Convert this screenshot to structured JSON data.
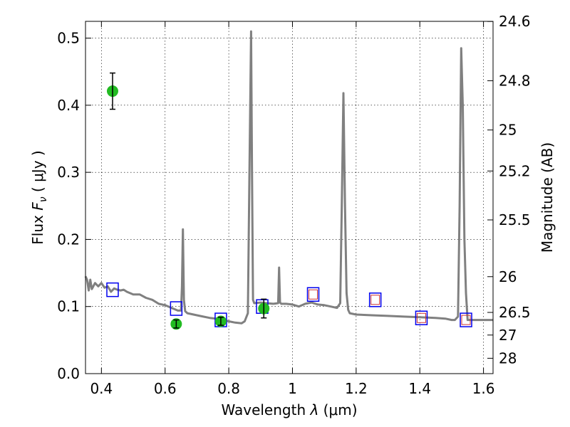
{
  "chart_data": {
    "type": "scatter",
    "title": "",
    "xlabel": "Wavelength  λ (μm)",
    "ylabel": "Flux  F_ν  ( μJy )",
    "ylabel_right": "Magnitude (AB)",
    "xlim": [
      0.35,
      1.63
    ],
    "ylim": [
      0.0,
      0.525
    ],
    "grid": true,
    "x_ticks": [
      0.4,
      0.6,
      0.8,
      1.0,
      1.2,
      1.4,
      1.6
    ],
    "x_tick_labels": [
      "0.4",
      "0.6",
      "0.8",
      "1",
      "1.2",
      "1.4",
      "1.6"
    ],
    "y_ticks": [
      0.0,
      0.1,
      0.2,
      0.3,
      0.4,
      0.5
    ],
    "y_tick_labels": [
      "0.0",
      "0.1",
      "0.2",
      "0.3",
      "0.4",
      "0.5"
    ],
    "right_ticks": [
      {
        "label": "24.6",
        "flux": 0.5248
      },
      {
        "label": "24.8",
        "flux": 0.4365
      },
      {
        "label": "25",
        "flux": 0.3631
      },
      {
        "label": "25.2",
        "flux": 0.302
      },
      {
        "label": "25.5",
        "flux": 0.2291
      },
      {
        "label": "26",
        "flux": 0.1445
      },
      {
        "label": "26.5",
        "flux": 0.0912
      },
      {
        "label": "27",
        "flux": 0.0575
      },
      {
        "label": "28",
        "flux": 0.0229
      }
    ],
    "colors": {
      "model": "#808080",
      "observed": "#22bb22",
      "model_phot": "#0000ee",
      "ir_phot": "#cc3333",
      "errorbar": "#000000"
    },
    "series": [
      {
        "kind": "model_spectrum",
        "x": [
          0.35,
          0.355,
          0.36,
          0.365,
          0.37,
          0.38,
          0.39,
          0.4,
          0.41,
          0.42,
          0.43,
          0.44,
          0.45,
          0.46,
          0.47,
          0.48,
          0.5,
          0.52,
          0.54,
          0.56,
          0.58,
          0.6,
          0.62,
          0.64,
          0.645,
          0.65,
          0.653,
          0.656,
          0.659,
          0.663,
          0.67,
          0.7,
          0.72,
          0.74,
          0.76,
          0.78,
          0.8,
          0.82,
          0.84,
          0.85,
          0.86,
          0.865,
          0.87,
          0.873,
          0.876,
          0.88,
          0.9,
          0.94,
          0.955,
          0.958,
          0.961,
          0.965,
          0.98,
          1.0,
          1.02,
          1.04,
          1.06,
          1.08,
          1.1,
          1.12,
          1.14,
          1.15,
          1.155,
          1.16,
          1.165,
          1.17,
          1.175,
          1.18,
          1.2,
          1.25,
          1.3,
          1.35,
          1.4,
          1.45,
          1.48,
          1.5,
          1.51,
          1.52,
          1.525,
          1.53,
          1.535,
          1.54,
          1.545,
          1.55,
          1.56,
          1.6,
          1.63
        ],
        "y": [
          0.145,
          0.14,
          0.124,
          0.14,
          0.126,
          0.135,
          0.13,
          0.135,
          0.128,
          0.13,
          0.122,
          0.127,
          0.125,
          0.124,
          0.125,
          0.122,
          0.118,
          0.118,
          0.113,
          0.11,
          0.104,
          0.102,
          0.098,
          0.094,
          0.094,
          0.094,
          0.13,
          0.215,
          0.11,
          0.093,
          0.09,
          0.087,
          0.085,
          0.083,
          0.082,
          0.08,
          0.078,
          0.076,
          0.075,
          0.078,
          0.09,
          0.3,
          0.51,
          0.3,
          0.11,
          0.105,
          0.106,
          0.104,
          0.105,
          0.158,
          0.106,
          0.104,
          0.104,
          0.103,
          0.1,
          0.104,
          0.106,
          0.103,
          0.102,
          0.1,
          0.098,
          0.105,
          0.25,
          0.418,
          0.25,
          0.12,
          0.095,
          0.09,
          0.088,
          0.087,
          0.086,
          0.085,
          0.084,
          0.083,
          0.082,
          0.08,
          0.08,
          0.085,
          0.25,
          0.485,
          0.4,
          0.2,
          0.12,
          0.08,
          0.08,
          0.08,
          0.08
        ]
      },
      {
        "kind": "observed",
        "x": [
          0.435,
          0.635,
          0.775,
          0.91
        ],
        "y": [
          0.421,
          0.074,
          0.078,
          0.097
        ],
        "yerr": [
          0.027,
          0.006,
          0.006,
          0.014
        ]
      },
      {
        "kind": "model_photometry",
        "x": [
          0.435,
          0.635,
          0.775,
          0.905,
          1.065,
          1.26,
          1.405,
          1.545
        ],
        "y": [
          0.125,
          0.097,
          0.08,
          0.1,
          0.118,
          0.11,
          0.083,
          0.08
        ]
      },
      {
        "kind": "ir_photometry",
        "x": [
          1.065,
          1.26,
          1.405,
          1.545
        ],
        "y": [
          0.118,
          0.11,
          0.083,
          0.08
        ]
      }
    ]
  }
}
